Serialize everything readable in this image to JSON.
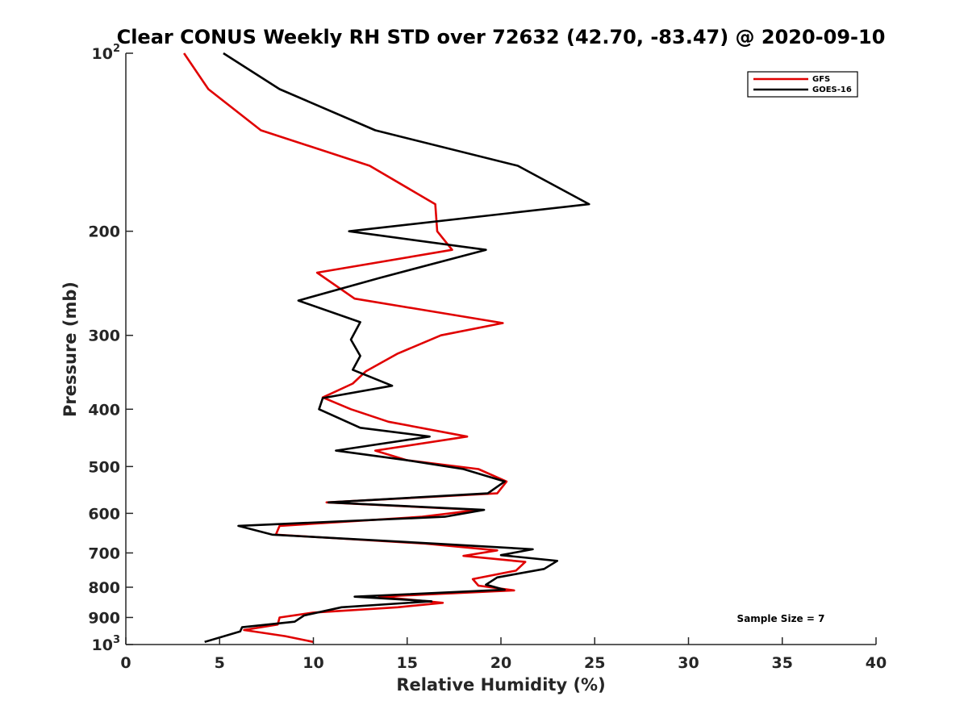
{
  "chart_data": {
    "type": "line",
    "title": "Clear CONUS Weekly RH STD over 72632 (42.70, -83.47) @ 2020-09-10",
    "xlabel": "Relative Humidity (%)",
    "ylabel": "Pressure (mb)",
    "xlim": [
      0,
      40
    ],
    "ylim": [
      100,
      1000
    ],
    "y_scale": "log",
    "y_reversed": true,
    "grid": false,
    "x_ticks": [
      0,
      5,
      10,
      15,
      20,
      25,
      30,
      35,
      40
    ],
    "x_tick_labels": [
      "0",
      "5",
      "10",
      "15",
      "20",
      "25",
      "30",
      "35",
      "40"
    ],
    "y_ticks": [
      100,
      200,
      300,
      400,
      500,
      600,
      700,
      800,
      900,
      1000
    ],
    "y_tick_labels": [
      {
        "base": "10",
        "sup": "2"
      },
      {
        "base": "200",
        "sup": ""
      },
      {
        "base": "300",
        "sup": ""
      },
      {
        "base": "400",
        "sup": ""
      },
      {
        "base": "500",
        "sup": ""
      },
      {
        "base": "600",
        "sup": ""
      },
      {
        "base": "700",
        "sup": ""
      },
      {
        "base": "800",
        "sup": ""
      },
      {
        "base": "900",
        "sup": ""
      },
      {
        "base": "10",
        "sup": "3"
      }
    ],
    "legend_position": "top-right",
    "annotation": "Sample Size = 7",
    "series": [
      {
        "name": "GFS",
        "color": "#e00000",
        "points": [
          [
            3.1,
            100
          ],
          [
            4.4,
            115
          ],
          [
            7.2,
            135
          ],
          [
            13.0,
            155
          ],
          [
            16.5,
            180
          ],
          [
            16.6,
            200
          ],
          [
            17.4,
            215
          ],
          [
            10.2,
            235
          ],
          [
            12.2,
            260
          ],
          [
            20.1,
            286
          ],
          [
            16.8,
            300
          ],
          [
            14.5,
            322
          ],
          [
            12.8,
            345
          ],
          [
            12.1,
            362
          ],
          [
            10.5,
            382
          ],
          [
            12.0,
            400
          ],
          [
            14.0,
            420
          ],
          [
            18.2,
            445
          ],
          [
            13.3,
            470
          ],
          [
            15.0,
            488
          ],
          [
            18.8,
            505
          ],
          [
            20.3,
            530
          ],
          [
            19.8,
            555
          ],
          [
            10.7,
            575
          ],
          [
            18.8,
            592
          ],
          [
            15.8,
            608
          ],
          [
            8.2,
            630
          ],
          [
            8.0,
            652
          ],
          [
            16.0,
            675
          ],
          [
            19.8,
            693
          ],
          [
            18.0,
            708
          ],
          [
            21.3,
            725
          ],
          [
            20.8,
            750
          ],
          [
            18.5,
            775
          ],
          [
            18.8,
            795
          ],
          [
            20.7,
            810
          ],
          [
            13.5,
            830
          ],
          [
            16.9,
            850
          ],
          [
            14.5,
            865
          ],
          [
            10.0,
            883
          ],
          [
            8.2,
            900
          ],
          [
            8.1,
            925
          ],
          [
            6.3,
            945
          ],
          [
            8.5,
            968
          ],
          [
            10.0,
            990
          ]
        ]
      },
      {
        "name": "GOES-16",
        "color": "#000000",
        "points": [
          [
            5.2,
            100
          ],
          [
            8.2,
            115
          ],
          [
            13.3,
            135
          ],
          [
            20.9,
            155
          ],
          [
            24.7,
            180
          ],
          [
            11.9,
            200
          ],
          [
            19.2,
            215
          ],
          [
            13.5,
            240
          ],
          [
            9.2,
            262
          ],
          [
            12.5,
            285
          ],
          [
            12.0,
            305
          ],
          [
            12.5,
            325
          ],
          [
            12.1,
            343
          ],
          [
            14.2,
            365
          ],
          [
            10.5,
            383
          ],
          [
            10.3,
            400
          ],
          [
            12.5,
            430
          ],
          [
            16.2,
            445
          ],
          [
            11.2,
            470
          ],
          [
            15.0,
            488
          ],
          [
            18.0,
            505
          ],
          [
            20.2,
            530
          ],
          [
            19.3,
            555
          ],
          [
            10.8,
            575
          ],
          [
            19.1,
            592
          ],
          [
            17.0,
            608
          ],
          [
            6.0,
            630
          ],
          [
            7.8,
            652
          ],
          [
            16.5,
            675
          ],
          [
            21.7,
            690
          ],
          [
            20.0,
            706
          ],
          [
            23.0,
            722
          ],
          [
            22.3,
            745
          ],
          [
            19.8,
            770
          ],
          [
            19.2,
            792
          ],
          [
            20.2,
            808
          ],
          [
            12.2,
            830
          ],
          [
            16.3,
            845
          ],
          [
            11.5,
            865
          ],
          [
            9.5,
            893
          ],
          [
            9.0,
            915
          ],
          [
            6.2,
            935
          ],
          [
            6.1,
            950
          ],
          [
            4.2,
            990
          ]
        ]
      }
    ]
  }
}
